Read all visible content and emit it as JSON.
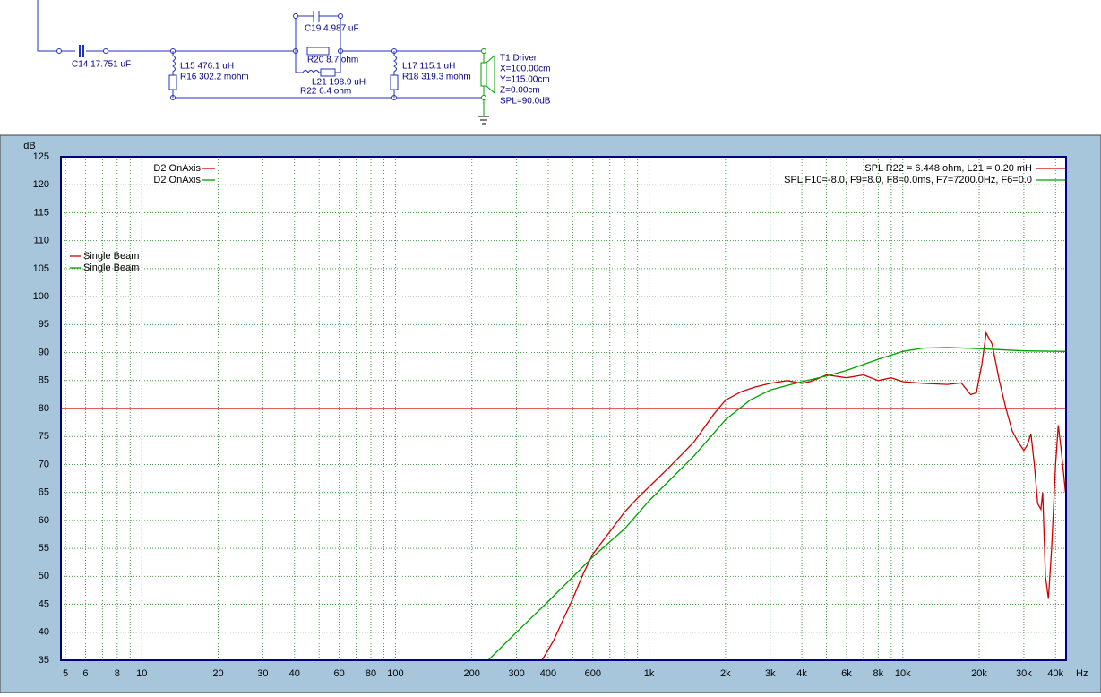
{
  "schematic": {
    "labels": [
      "C14 17.751 uF",
      "C19 4.987 uF",
      "R20 8.7 ohm",
      "L21 198.9 uH",
      "R22 6.4 ohm",
      "L15 476.1 uH",
      "R16 302.2 mohm",
      "L17 115.1 uH",
      "R18 319.3 mohm",
      "T1  Driver",
      "X=100.00cm",
      "Y=115.00cm",
      "Z=0.00cm",
      "SPL=90.0dB"
    ]
  },
  "chart_data": {
    "type": "line",
    "y_label": "dB",
    "x_label": "Hz",
    "xscale": "log",
    "grid": true,
    "xlim": [
      4.8,
      44000
    ],
    "ylim": [
      35,
      125
    ],
    "yticks": [
      35,
      40,
      45,
      50,
      55,
      60,
      65,
      70,
      75,
      80,
      85,
      90,
      95,
      100,
      105,
      110,
      115,
      120,
      125
    ],
    "xticks": [
      5,
      6,
      8,
      10,
      20,
      30,
      40,
      60,
      80,
      100,
      200,
      300,
      400,
      600,
      {
        "value": 1000,
        "label": "1k"
      },
      {
        "value": 2000,
        "label": "2k"
      },
      {
        "value": 3000,
        "label": "3k"
      },
      {
        "value": 4000,
        "label": "4k"
      },
      {
        "value": 6000,
        "label": "6k"
      },
      {
        "value": 8000,
        "label": "8k"
      },
      {
        "value": 10000,
        "label": "10k"
      },
      {
        "value": 20000,
        "label": "20k"
      },
      {
        "value": 30000,
        "label": "30k"
      },
      {
        "value": 40000,
        "label": "40k"
      }
    ],
    "x_minor_ticks": [
      7,
      9,
      50,
      70,
      90,
      500,
      700,
      800,
      900,
      5000,
      7000,
      9000
    ],
    "series": [
      {
        "name": "SPL  R22 = 6.448 ohm, L21 = 0.20 mH",
        "color": "#d00000",
        "x": [
          378,
          420,
          450,
          500,
          550,
          600,
          700,
          800,
          900,
          1000,
          1200,
          1500,
          1800,
          2000,
          2300,
          2600,
          3000,
          3500,
          4000,
          4300,
          4600,
          5000,
          6000,
          7000,
          8000,
          9000,
          10000,
          12000,
          15000,
          17000,
          18500,
          19500,
          20500,
          21300,
          22500,
          24000,
          25500,
          27000,
          28500,
          30000,
          31000,
          32000,
          33000,
          34000,
          35000,
          35600,
          36500,
          37500,
          38600,
          40000,
          41000,
          42000,
          43800
        ],
        "values": [
          35,
          38.5,
          41.5,
          46,
          50.5,
          54,
          58,
          61.5,
          64,
          66,
          69.5,
          74,
          79,
          81.5,
          83,
          83.8,
          84.5,
          85,
          84.5,
          84.8,
          85.3,
          86,
          85.5,
          86,
          85,
          85.5,
          84.8,
          84.5,
          84.3,
          84.6,
          82.5,
          82.8,
          88,
          93.5,
          91.5,
          85,
          80,
          76,
          74,
          72.5,
          73.5,
          75.5,
          70,
          63,
          62,
          65,
          50,
          46,
          55,
          70,
          77,
          73,
          65
        ]
      },
      {
        "name": "SPL  F10=-8.0, F9=8.0, F8=0.0ms, F7=7200.0Hz, F6=0.0",
        "color": "#00a000",
        "x": [
          232,
          300,
          400,
          600,
          800,
          1000,
          1500,
          2000,
          2500,
          3000,
          4000,
          5000,
          6000,
          8000,
          10000,
          12000,
          15000,
          20000,
          30000,
          44000
        ],
        "values": [
          35,
          40,
          45.5,
          53.5,
          58.5,
          63.5,
          71.5,
          78,
          81.5,
          83.3,
          84.8,
          85.8,
          86.8,
          88.8,
          90.2,
          90.8,
          90.9,
          90.7,
          90.3,
          90.2
        ]
      }
    ],
    "reference_lines": [
      {
        "value": 80,
        "color": "#d00000"
      }
    ],
    "legend_groups": [
      {
        "entries": [
          {
            "name": "D2 OnAxis",
            "color": "#d00000"
          },
          {
            "name": "D2 OnAxis",
            "color": "#00a000"
          }
        ]
      },
      {
        "entries": [
          {
            "name": "Single Beam",
            "color": "#d00000"
          },
          {
            "name": "Single Beam",
            "color": "#00a000"
          }
        ]
      }
    ]
  }
}
